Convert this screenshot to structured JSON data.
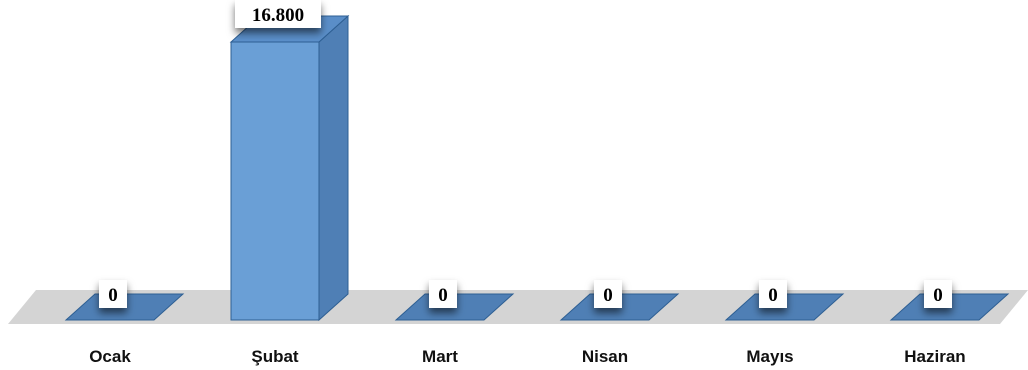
{
  "chart_data": {
    "type": "bar",
    "categories": [
      "Ocak",
      "Şubat",
      "Mart",
      "Nisan",
      "Mayıs",
      "Haziran"
    ],
    "values": [
      0,
      16800,
      0,
      0,
      0,
      0
    ],
    "value_labels": [
      "0",
      "16.800",
      "0",
      "0",
      "0",
      "0"
    ],
    "title": "",
    "xlabel": "",
    "ylabel": "",
    "ylim": [
      0,
      16800
    ],
    "grid": false,
    "legend": "none",
    "style": "3d-column",
    "colors": {
      "bar_front": "#6a9fd6",
      "bar_side": "#4f7fb5",
      "bar_top": "#5a8ec8",
      "bar_stroke": "#2e5f93",
      "floor": "#d4d4d4"
    }
  }
}
